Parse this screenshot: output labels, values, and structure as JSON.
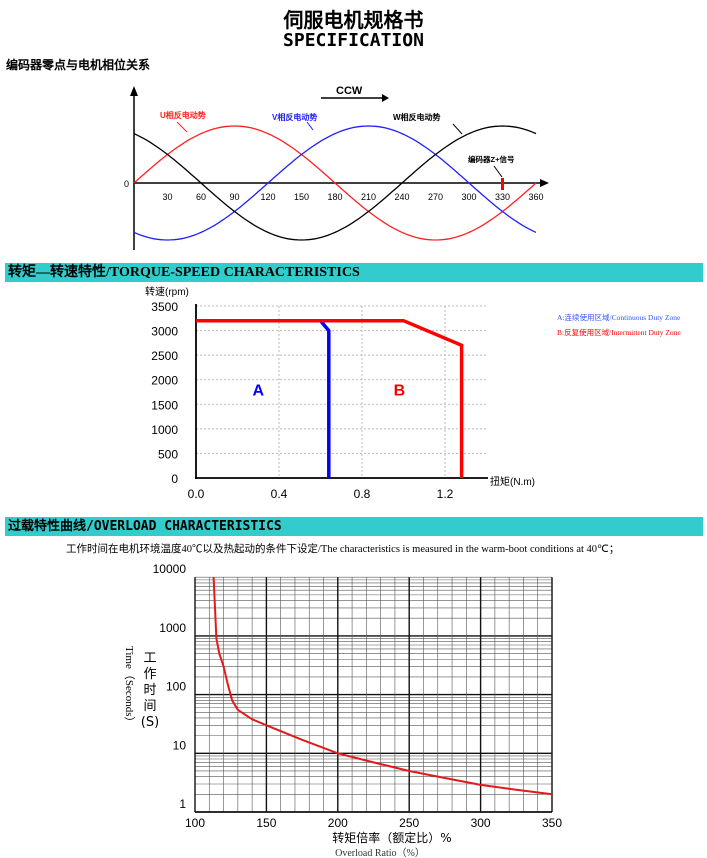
{
  "header": {
    "title_cn": "伺服电机规格书",
    "title_en": "SPECIFICATION"
  },
  "sections": {
    "phase": "编码器零点与电机相位关系",
    "torque_speed": "转矩—转速特性/TORQUE-SPEED CHARACTERISTICS",
    "overload": "过载特性曲线/OVERLOAD CHARACTERISTICS",
    "overload_note": "工作时间在电机环境温度40℃以及热起动的条件下设定/The characteristics is measured in the warm-boot conditions at 40℃；"
  },
  "chart_data": [
    {
      "type": "line",
      "x": {
        "range": [
          0,
          360
        ],
        "ticks": [
          "30",
          "60",
          "90",
          "120",
          "150",
          "180",
          "210",
          "240",
          "270",
          "300",
          "330",
          "360"
        ]
      },
      "y_origin_label": "0",
      "direction_label": "CCW",
      "series": [
        {
          "name": "U相反电动势",
          "function": "sin(θ)",
          "color": "#ff2020"
        },
        {
          "name": "V相反电动势",
          "function": "sin(θ-120°)",
          "color": "#2020ff"
        },
        {
          "name": "W相反电动势",
          "function": "sin(θ+120°)",
          "color": "#000000"
        }
      ],
      "annotations": [
        {
          "text": "编码器Z+信号",
          "x": 330,
          "color": "#ff0000"
        }
      ]
    },
    {
      "type": "line",
      "ylabel": "转速(rpm)",
      "xlabel": "扭矩(N.m)",
      "xlim": [
        0,
        1.4
      ],
      "ylim": [
        0,
        3500
      ],
      "xticks": [
        "0.0",
        "0.4",
        "0.8",
        "1.2"
      ],
      "yticks": [
        "0",
        "500",
        "1000",
        "1500",
        "2000",
        "2500",
        "3000",
        "3500"
      ],
      "grid": true,
      "series": [
        {
          "zone": "A",
          "color": "#0000ff",
          "points": [
            [
              0.6,
              3200
            ],
            [
              0.64,
              3000
            ],
            [
              0.64,
              0
            ]
          ]
        },
        {
          "zone": "B",
          "color": "#ff0000",
          "points": [
            [
              0,
              3200
            ],
            [
              1.0,
              3200
            ],
            [
              1.28,
              2700
            ],
            [
              1.28,
              0
            ]
          ]
        }
      ],
      "zone_labels": [
        {
          "text": "A",
          "x": 0.3,
          "y": 1800,
          "color": "#0000ff"
        },
        {
          "text": "B",
          "x": 0.98,
          "y": 1800,
          "color": "#ff0000"
        }
      ],
      "legend": {
        "placement": "right",
        "entries": [
          {
            "text": "A:连续使用区域/Continuous Duty Zone",
            "color": "#3355ff"
          },
          {
            "text": "B:反复使用区域/Intermittent Duty Zone",
            "color": "#ff0000"
          }
        ]
      }
    },
    {
      "type": "line",
      "xlim": [
        100,
        350
      ],
      "ylim": [
        1,
        10000
      ],
      "yscale": "log",
      "xticks": [
        "100",
        "150",
        "200",
        "250",
        "300",
        "350"
      ],
      "yticks": [
        "1",
        "10",
        "100",
        "1000",
        "10000"
      ],
      "ylabel_cn": [
        "工",
        "作",
        "时",
        "间",
        "(S)"
      ],
      "ylabel_en": "Time（Seconds）",
      "xlabel_cn": "转矩倍率（额定比）%",
      "xlabel_en": "Overload Ratio（%）",
      "grid": true,
      "series": [
        {
          "color": "#e31a1a",
          "points": [
            [
              113,
              10000
            ],
            [
              114,
              3000
            ],
            [
              115,
              900
            ],
            [
              117,
              500
            ],
            [
              120,
              300
            ],
            [
              123,
              150
            ],
            [
              126,
              80
            ],
            [
              130,
              55
            ],
            [
              140,
              38
            ],
            [
              150,
              30
            ],
            [
              175,
              17
            ],
            [
              200,
              10
            ],
            [
              225,
              7
            ],
            [
              250,
              5
            ],
            [
              275,
              3.8
            ],
            [
              300,
              2.9
            ],
            [
              325,
              2.4
            ],
            [
              350,
              2.0
            ]
          ]
        }
      ]
    }
  ]
}
